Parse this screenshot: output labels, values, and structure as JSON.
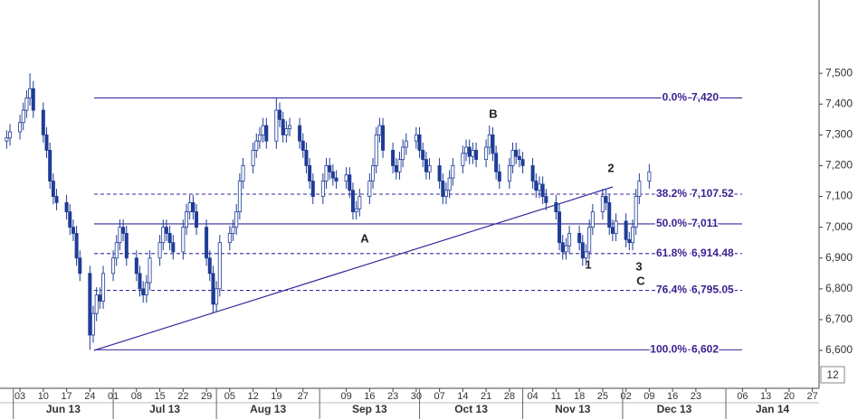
{
  "chart_data": {
    "type": "candlestick",
    "color": "#1f3c96",
    "up_color": "#ffffff",
    "down_color": "#1f3c96",
    "level_color": "#3a2a9a",
    "x": [
      "2013-05-30",
      "2013-05-31",
      "2013-06-03",
      "2013-06-04",
      "2013-06-05",
      "2013-06-06",
      "2013-06-07",
      "2013-06-10",
      "2013-06-11",
      "2013-06-12",
      "2013-06-13",
      "2013-06-14",
      "2013-06-17",
      "2013-06-18",
      "2013-06-19",
      "2013-06-20",
      "2013-06-21",
      "2013-06-24",
      "2013-06-25",
      "2013-06-26",
      "2013-06-27",
      "2013-06-28",
      "2013-07-01",
      "2013-07-02",
      "2013-07-03",
      "2013-07-04",
      "2013-07-05",
      "2013-07-08",
      "2013-07-09",
      "2013-07-10",
      "2013-07-11",
      "2013-07-12",
      "2013-07-15",
      "2013-07-16",
      "2013-07-17",
      "2013-07-18",
      "2013-07-19",
      "2013-07-22",
      "2013-07-23",
      "2013-07-24",
      "2013-07-25",
      "2013-07-26",
      "2013-07-29",
      "2013-07-30",
      "2013-07-31",
      "2013-08-01",
      "2013-08-02",
      "2013-08-05",
      "2013-08-06",
      "2013-08-07",
      "2013-08-08",
      "2013-08-09",
      "2013-08-12",
      "2013-08-13",
      "2013-08-14",
      "2013-08-15",
      "2013-08-16",
      "2013-08-19",
      "2013-08-20",
      "2013-08-21",
      "2013-08-22",
      "2013-08-23",
      "2013-08-26",
      "2013-08-27",
      "2013-08-28",
      "2013-08-29",
      "2013-08-30",
      "2013-09-02",
      "2013-09-03",
      "2013-09-04",
      "2013-09-05",
      "2013-09-06",
      "2013-09-09",
      "2013-09-10",
      "2013-09-11",
      "2013-09-12",
      "2013-09-13",
      "2013-09-16",
      "2013-09-17",
      "2013-09-18",
      "2013-09-19",
      "2013-09-20",
      "2013-09-23",
      "2013-09-24",
      "2013-09-25",
      "2013-09-26",
      "2013-09-27",
      "2013-09-30",
      "2013-10-01",
      "2013-10-02",
      "2013-10-03",
      "2013-10-04",
      "2013-10-07",
      "2013-10-08",
      "2013-10-09",
      "2013-10-10",
      "2013-10-11",
      "2013-10-14",
      "2013-10-15",
      "2013-10-16",
      "2013-10-17",
      "2013-10-18",
      "2013-10-21",
      "2013-10-22",
      "2013-10-23",
      "2013-10-24",
      "2013-10-25",
      "2013-10-28",
      "2013-10-29",
      "2013-10-30",
      "2013-10-31",
      "2013-11-01",
      "2013-11-04",
      "2013-11-05",
      "2013-11-06",
      "2013-11-07",
      "2013-11-08",
      "2013-11-11",
      "2013-11-12",
      "2013-11-13",
      "2013-11-14",
      "2013-11-15",
      "2013-11-18",
      "2013-11-19",
      "2013-11-20",
      "2013-11-21",
      "2013-11-22",
      "2013-11-25",
      "2013-11-26",
      "2013-11-27",
      "2013-11-28",
      "2013-11-29",
      "2013-12-02",
      "2013-12-03",
      "2013-12-04",
      "2013-12-05",
      "2013-12-06",
      "2013-12-09"
    ],
    "open": [
      7280,
      7290,
      7310,
      7340,
      7380,
      7420,
      7450,
      7380,
      7300,
      7250,
      7150,
      7100,
      7080,
      7050,
      7000,
      6980,
      6900,
      6850,
      6650,
      6720,
      6780,
      6760,
      6850,
      6900,
      6950,
      7000,
      6980,
      6900,
      6850,
      6800,
      6780,
      6820,
      6900,
      6950,
      7000,
      6980,
      6950,
      6920,
      7000,
      7050,
      7080,
      7050,
      7000,
      6900,
      6850,
      6750,
      6800,
      6950,
      6980,
      7000,
      7050,
      7150,
      7200,
      7250,
      7280,
      7300,
      7330,
      7280,
      7380,
      7350,
      7300,
      7320,
      7330,
      7280,
      7250,
      7200,
      7150,
      7100,
      7150,
      7200,
      7180,
      7160,
      7150,
      7170,
      7120,
      7050,
      7060,
      7100,
      7150,
      7200,
      7300,
      7330,
      7250,
      7200,
      7180,
      7220,
      7260,
      7280,
      7300,
      7250,
      7220,
      7180,
      7200,
      7150,
      7100,
      7120,
      7160,
      7200,
      7240,
      7260,
      7230,
      7250,
      7220,
      7260,
      7300,
      7240,
      7180,
      7150,
      7200,
      7250,
      7230,
      7220,
      7200,
      7150,
      7120,
      7140,
      7100,
      7080,
      7050,
      6950,
      6920,
      6940,
      6980,
      6950,
      6900,
      6920,
      7000,
      7050,
      7100,
      7080,
      7000,
      6980,
      7020,
      6960,
      6950,
      7000,
      7100,
      7150
    ],
    "high": [
      7315,
      7335,
      7365,
      7405,
      7445,
      7500,
      7475,
      7405,
      7325,
      7275,
      7175,
      7125,
      7105,
      7075,
      7025,
      7005,
      6925,
      6875,
      6745,
      6805,
      6805,
      6875,
      6925,
      6975,
      7025,
      7025,
      7005,
      6925,
      6875,
      6825,
      6845,
      6925,
      6975,
      7025,
      7025,
      7005,
      6975,
      7025,
      7075,
      7105,
      7105,
      7075,
      7025,
      6925,
      6875,
      6825,
      6975,
      7005,
      7025,
      7075,
      7175,
      7225,
      7275,
      7305,
      7325,
      7355,
      7355,
      7420,
      7405,
      7375,
      7345,
      7355,
      7355,
      7305,
      7275,
      7225,
      7175,
      7175,
      7225,
      7225,
      7205,
      7185,
      7195,
      7195,
      7145,
      7085,
      7125,
      7175,
      7225,
      7325,
      7355,
      7355,
      7275,
      7225,
      7245,
      7285,
      7305,
      7325,
      7325,
      7275,
      7245,
      7225,
      7225,
      7175,
      7145,
      7185,
      7225,
      7265,
      7285,
      7285,
      7275,
      7275,
      7285,
      7330,
      7325,
      7265,
      7205,
      7225,
      7275,
      7275,
      7255,
      7245,
      7225,
      7175,
      7165,
      7165,
      7125,
      7105,
      7075,
      6975,
      6965,
      7005,
      7005,
      6975,
      6945,
      7025,
      7075,
      7125,
      7125,
      7105,
      7025,
      7045,
      7045,
      6985,
      7025,
      7125,
      7175,
      7205
    ],
    "low": [
      7255,
      7265,
      7285,
      7315,
      7355,
      7395,
      7355,
      7275,
      7225,
      7125,
      7075,
      7055,
      7025,
      6975,
      6955,
      6875,
      6825,
      6602,
      6625,
      6695,
      6735,
      6735,
      6825,
      6875,
      6925,
      6955,
      6875,
      6825,
      6775,
      6755,
      6755,
      6795,
      6875,
      6925,
      6955,
      6925,
      6895,
      6895,
      6975,
      7025,
      7025,
      6975,
      6875,
      6825,
      6720,
      6725,
      6775,
      6925,
      6955,
      6975,
      7025,
      7125,
      7175,
      7225,
      7255,
      7275,
      7255,
      7255,
      7325,
      7275,
      7275,
      7295,
      7255,
      7225,
      7175,
      7125,
      7075,
      7075,
      7125,
      7155,
      7135,
      7125,
      7125,
      7095,
      7025,
      7025,
      7035,
      7075,
      7125,
      7175,
      7275,
      7225,
      7175,
      7155,
      7155,
      7195,
      7235,
      7255,
      7225,
      7195,
      7155,
      7155,
      7125,
      7075,
      7075,
      7095,
      7135,
      7175,
      7215,
      7205,
      7205,
      7195,
      7195,
      7235,
      7215,
      7155,
      7125,
      7125,
      7175,
      7205,
      7195,
      7175,
      7125,
      7095,
      7095,
      7075,
      7055,
      7025,
      6925,
      6895,
      6895,
      6915,
      6925,
      6875,
      6875,
      6895,
      6975,
      7025,
      7055,
      6975,
      6955,
      6955,
      6935,
      6925,
      6925,
      6975,
      7075,
      7125
    ],
    "close": [
      7290,
      7310,
      7340,
      7380,
      7420,
      7450,
      7380,
      7300,
      7250,
      7150,
      7100,
      7080,
      7050,
      7000,
      6980,
      6900,
      6850,
      6650,
      6720,
      6780,
      6760,
      6850,
      6900,
      6950,
      7000,
      6980,
      6900,
      6850,
      6800,
      6780,
      6820,
      6900,
      6950,
      7000,
      6980,
      6950,
      6920,
      7000,
      7050,
      7080,
      7050,
      7000,
      6900,
      6850,
      6750,
      6800,
      6950,
      6980,
      7000,
      7050,
      7150,
      7200,
      7250,
      7280,
      7300,
      7330,
      7280,
      7380,
      7350,
      7300,
      7320,
      7330,
      7280,
      7250,
      7200,
      7150,
      7100,
      7150,
      7200,
      7180,
      7160,
      7150,
      7170,
      7120,
      7050,
      7060,
      7100,
      7150,
      7200,
      7300,
      7330,
      7250,
      7200,
      7180,
      7220,
      7260,
      7280,
      7300,
      7250,
      7220,
      7180,
      7200,
      7150,
      7100,
      7120,
      7160,
      7200,
      7240,
      7260,
      7230,
      7250,
      7220,
      7260,
      7300,
      7240,
      7180,
      7150,
      7200,
      7250,
      7230,
      7220,
      7200,
      7150,
      7120,
      7140,
      7100,
      7080,
      7050,
      6950,
      6920,
      6940,
      6980,
      6950,
      6900,
      6920,
      7000,
      7050,
      7100,
      7080,
      7000,
      6980,
      7020,
      6960,
      6950,
      7000,
      7100,
      7150,
      7180
    ],
    "xlim": [
      "2013-05-28",
      "2014-01-29"
    ],
    "ylim": [
      6477,
      7738
    ],
    "yticks": [
      {
        "value": 6600,
        "label": "6,600"
      },
      {
        "value": 6700,
        "label": "6,700"
      },
      {
        "value": 6800,
        "label": "6,800"
      },
      {
        "value": 6900,
        "label": "6,900"
      },
      {
        "value": 7000,
        "label": "7,000"
      },
      {
        "value": 7100,
        "label": "7,100"
      },
      {
        "value": 7200,
        "label": "7,200"
      },
      {
        "value": 7300,
        "label": "7,300"
      },
      {
        "value": 7400,
        "label": "7,400"
      },
      {
        "value": 7500,
        "label": "7,500"
      }
    ],
    "xticks": [
      {
        "value": "2013-06-03",
        "label": "03"
      },
      {
        "value": "2013-06-10",
        "label": "10"
      },
      {
        "value": "2013-06-17",
        "label": "17"
      },
      {
        "value": "2013-06-24",
        "label": "24"
      },
      {
        "value": "2013-07-01",
        "label": "01"
      },
      {
        "value": "2013-07-08",
        "label": "08"
      },
      {
        "value": "2013-07-15",
        "label": "15"
      },
      {
        "value": "2013-07-22",
        "label": "22"
      },
      {
        "value": "2013-07-29",
        "label": "29"
      },
      {
        "value": "2013-08-05",
        "label": "05"
      },
      {
        "value": "2013-08-12",
        "label": "12"
      },
      {
        "value": "2013-08-19",
        "label": "19"
      },
      {
        "value": "2013-08-27",
        "label": "27"
      },
      {
        "value": "2013-09-09",
        "label": "09"
      },
      {
        "value": "2013-09-16",
        "label": "16"
      },
      {
        "value": "2013-09-23",
        "label": "23"
      },
      {
        "value": "2013-09-30",
        "label": "30"
      },
      {
        "value": "2013-10-07",
        "label": "07"
      },
      {
        "value": "2013-10-14",
        "label": "14"
      },
      {
        "value": "2013-10-21",
        "label": "21"
      },
      {
        "value": "2013-10-28",
        "label": "28"
      },
      {
        "value": "2013-11-04",
        "label": "04"
      },
      {
        "value": "2013-11-11",
        "label": "11"
      },
      {
        "value": "2013-11-18",
        "label": "18"
      },
      {
        "value": "2013-11-25",
        "label": "25"
      },
      {
        "value": "2013-12-02",
        "label": "02"
      },
      {
        "value": "2013-12-09",
        "label": "09"
      },
      {
        "value": "2013-12-16",
        "label": "16"
      },
      {
        "value": "2013-12-23",
        "label": "23"
      },
      {
        "value": "2014-01-06",
        "label": "06"
      },
      {
        "value": "2014-01-13",
        "label": "13"
      },
      {
        "value": "2014-01-20",
        "label": "20"
      },
      {
        "value": "2014-01-27",
        "label": "27"
      }
    ],
    "months": [
      {
        "value": "2013-06",
        "label": "Jun 13"
      },
      {
        "value": "2013-07",
        "label": "Jul 13"
      },
      {
        "value": "2013-08",
        "label": "Aug 13"
      },
      {
        "value": "2013-09",
        "label": "Sep 13"
      },
      {
        "value": "2013-10",
        "label": "Oct 13"
      },
      {
        "value": "2013-11",
        "label": "Nov 13"
      },
      {
        "value": "2013-12",
        "label": "Dec 13"
      },
      {
        "value": "2014-01",
        "label": "Jan 14"
      }
    ],
    "levels": [
      {
        "percent": "0.0%",
        "value": 7420,
        "value_label": "7,420",
        "dashed": false
      },
      {
        "percent": "38.2%",
        "value": 7107.52,
        "value_label": "7,107.52",
        "dashed": true
      },
      {
        "percent": "50.0%",
        "value": 7011,
        "value_label": "7,011",
        "dashed": false
      },
      {
        "percent": "61.8%",
        "value": 6914.48,
        "value_label": "6,914.48",
        "dashed": true
      },
      {
        "percent": "76.4%",
        "value": 6795.05,
        "value_label": "6,795.05",
        "dashed": true
      },
      {
        "percent": "100.0%",
        "value": 6602,
        "value_label": "6,602",
        "dashed": false
      }
    ],
    "annotations": [
      "A",
      "B",
      "1",
      "2",
      "3",
      "C"
    ],
    "corner_label": "12"
  }
}
